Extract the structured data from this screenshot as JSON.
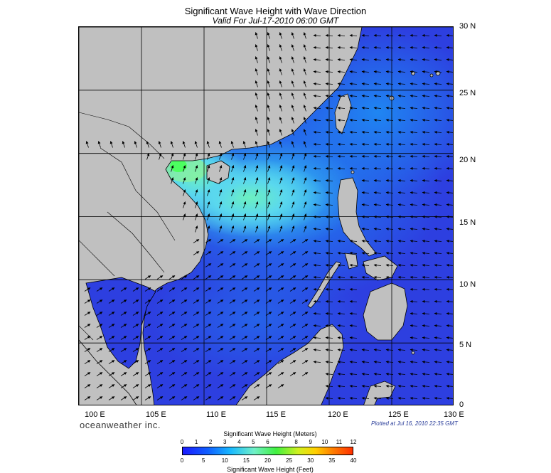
{
  "title": "Significant Wave Height with Wave Direction",
  "subtitle": "Valid For Jul-17-2010 06:00 GMT",
  "lat_labels": [
    "30 N",
    "25 N",
    "20 N",
    "15 N",
    "10 N",
    "5 N",
    "0"
  ],
  "lon_labels": [
    "100 E",
    "105 E",
    "110 E",
    "115 E",
    "120 E",
    "125 E",
    "130 E"
  ],
  "brand": "oceanweather inc.",
  "plotted": "Plotted at Jul 16, 2010 22:35 GMT",
  "colorbar": {
    "title_meters": "Significant Wave Height (Meters)",
    "title_feet": "Significant Wave Height (Feet)",
    "meters_ticks": [
      "0",
      "1",
      "2",
      "3",
      "4",
      "5",
      "6",
      "7",
      "8",
      "9",
      "10",
      "11",
      "12"
    ],
    "feet_ticks": [
      "0",
      "5",
      "10",
      "15",
      "20",
      "25",
      "30",
      "35",
      "40"
    ]
  },
  "colors": {
    "land": "#c0c0c0",
    "sea_low": "#2d3fe0",
    "sea_mid": "#1a8cf5",
    "sea_high": "#50e6f0",
    "sea_peak": "#4cff60",
    "grid": "#000000"
  }
}
